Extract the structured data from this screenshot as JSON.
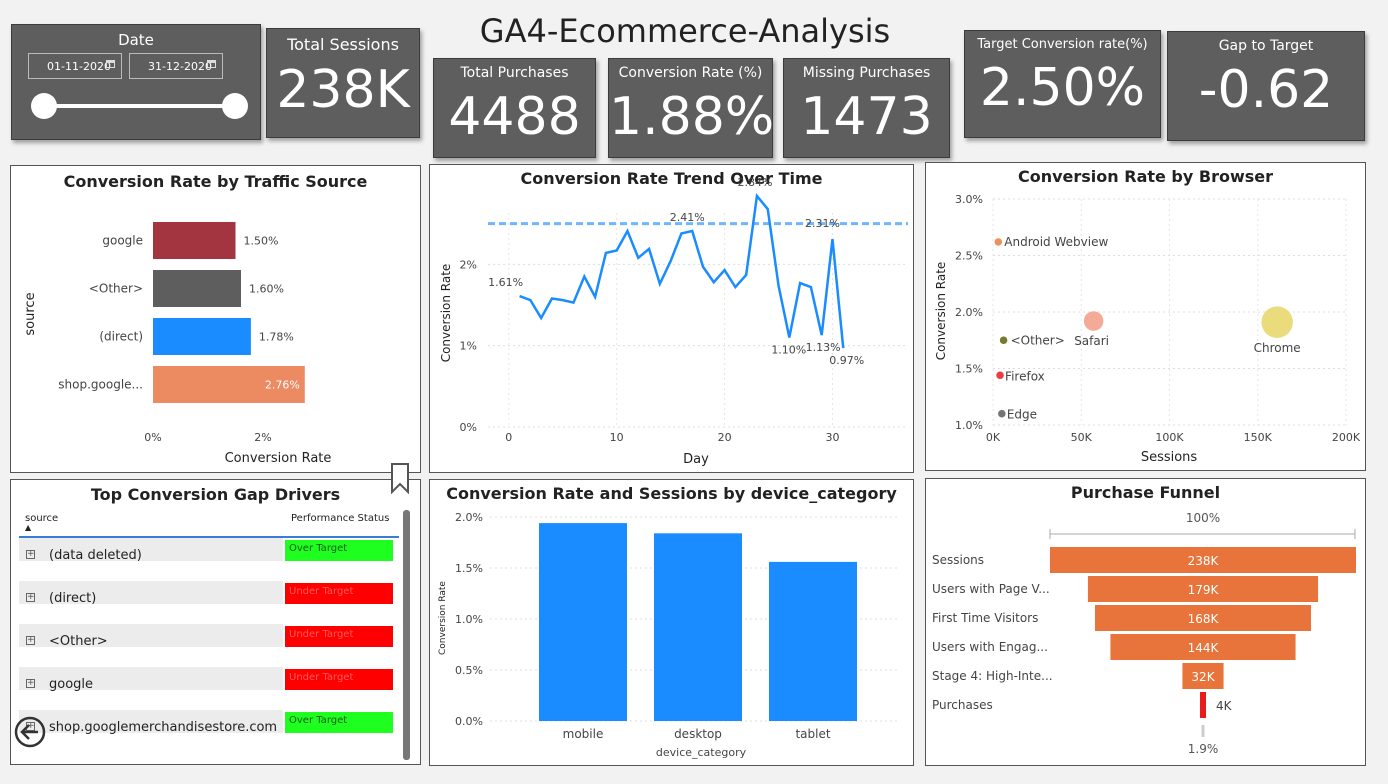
{
  "title": "GA4-Ecommerce-Analysis",
  "date_filter": {
    "label": "Date",
    "start": "01-11-2020",
    "end": "31-12-2020"
  },
  "kpis": {
    "total_sessions": {
      "label": "Total Sessions",
      "value": "238K"
    },
    "total_purchases": {
      "label": "Total Purchases",
      "value": "4488"
    },
    "conversion_rate": {
      "label": "Conversion Rate (%)",
      "value": "1.88%"
    },
    "missing_purchases": {
      "label": "Missing Purchases",
      "value": "1473"
    },
    "target_conversion": {
      "label": "Target Conversion rate(%)",
      "value": "2.50%"
    },
    "gap_to_target": {
      "label": "Gap to Target",
      "value": "-0.62"
    }
  },
  "chart_data": [
    {
      "type": "bar",
      "orientation": "horizontal",
      "title": "Conversion Rate by Traffic Source",
      "xlabel": "Conversion Rate",
      "ylabel": "source",
      "categories": [
        "google",
        "<Other>",
        "(direct)",
        "shop.google..."
      ],
      "values": [
        1.5,
        1.6,
        1.78,
        2.76
      ],
      "labels": [
        "1.50%",
        "1.60%",
        "1.78%",
        "2.76%"
      ],
      "colors": [
        "#a33541",
        "#5e5e5e",
        "#1a8cff",
        "#ec8b62"
      ],
      "xticks": [
        "0%",
        "2%"
      ],
      "xlim": [
        0,
        2.8
      ]
    },
    {
      "type": "line",
      "title": "Conversion Rate Trend Over Time",
      "xlabel": "Day",
      "ylabel": "Conversion Rate",
      "x": [
        1,
        2,
        3,
        4,
        5,
        6,
        7,
        8,
        9,
        10,
        11,
        12,
        13,
        14,
        15,
        16,
        17,
        18,
        19,
        20,
        21,
        22,
        23,
        24,
        25,
        26,
        27,
        28,
        29,
        30,
        31
      ],
      "y": [
        1.61,
        1.56,
        1.34,
        1.58,
        1.56,
        1.53,
        1.85,
        1.6,
        2.14,
        2.17,
        2.41,
        2.08,
        2.19,
        1.76,
        2.04,
        2.38,
        2.41,
        1.97,
        1.78,
        1.93,
        1.72,
        1.87,
        2.84,
        2.68,
        1.74,
        1.1,
        1.77,
        1.72,
        1.13,
        2.31,
        0.97
      ],
      "annotations": [
        {
          "x": 1,
          "y": 1.61,
          "label": "1.61%"
        },
        {
          "x": 17,
          "y": 2.41,
          "label": "2.41%"
        },
        {
          "x": 23,
          "y": 2.84,
          "label": "2.84%"
        },
        {
          "x": 26,
          "y": 1.1,
          "label": "1.10%"
        },
        {
          "x": 29,
          "y": 1.13,
          "label": "1.13%"
        },
        {
          "x": 30,
          "y": 2.31,
          "label": "2.31%"
        },
        {
          "x": 31,
          "y": 0.97,
          "label": "0.97%"
        }
      ],
      "target_line": 2.5,
      "xticks": [
        0,
        10,
        20,
        30
      ],
      "yticks": [
        "0%",
        "1%",
        "2%"
      ],
      "xlim": [
        -1,
        37
      ],
      "ylim": [
        0,
        3.0
      ]
    },
    {
      "type": "scatter",
      "title": "Conversion Rate by Browser",
      "xlabel": "Sessions",
      "ylabel": "Conversion Rate",
      "points": [
        {
          "name": "Android Webview",
          "x": 3000,
          "y": 2.62,
          "color": "#e8884a"
        },
        {
          "name": "<Other>",
          "x": 6000,
          "y": 1.75,
          "color": "#6b6b1f"
        },
        {
          "name": "Safari",
          "x": 57000,
          "y": 1.92,
          "color": "#f2a38c"
        },
        {
          "name": "Chrome",
          "x": 161000,
          "y": 1.91,
          "color": "#e8d870"
        },
        {
          "name": "Firefox",
          "x": 4000,
          "y": 1.44,
          "color": "#e8282b"
        },
        {
          "name": "Edge",
          "x": 5000,
          "y": 1.1,
          "color": "#666666"
        }
      ],
      "xticks": [
        "0K",
        "50K",
        "100K",
        "150K",
        "200K"
      ],
      "yticks": [
        "1.0%",
        "1.5%",
        "2.0%",
        "2.5%",
        "3.0%"
      ],
      "xlim": [
        0,
        200000
      ],
      "ylim": [
        1.0,
        3.0
      ]
    },
    {
      "type": "bar",
      "title": "Conversion Rate and Sessions by device_category",
      "xlabel": "device_category",
      "ylabel": "Conversion Rate",
      "categories": [
        "mobile",
        "desktop",
        "tablet"
      ],
      "values": [
        1.94,
        1.84,
        1.56
      ],
      "yticks": [
        "0.0%",
        "0.5%",
        "1.0%",
        "1.5%",
        "2.0%"
      ],
      "ylim": [
        0,
        2.0
      ],
      "color": "#1a8cff"
    },
    {
      "type": "funnel",
      "title": "Purchase Funnel",
      "top_label": "100%",
      "bottom_label": "1.9%",
      "categories": [
        "Sessions",
        "Users with Page V...",
        "First Time Visitors",
        "Users with Engag...",
        "Stage 4: High-Inte...",
        "Purchases"
      ],
      "values": [
        238,
        179,
        168,
        144,
        32,
        4.5
      ],
      "labels": [
        "238K",
        "179K",
        "168K",
        "144K",
        "32K",
        "4K"
      ],
      "colors": [
        "#e8743b",
        "#e8743b",
        "#e8743b",
        "#e8743b",
        "#e8743b",
        "#e81c1c"
      ]
    }
  ],
  "gap_table": {
    "title": "Top Conversion Gap Drivers",
    "columns": [
      "source",
      "Performance Status"
    ],
    "rows": [
      {
        "source": "(data deleted)",
        "status": "Over Target",
        "color": "#1fff1f"
      },
      {
        "source": "(direct)",
        "status": "Under Target",
        "color": "#ff0000"
      },
      {
        "source": "<Other>",
        "status": "Under Target",
        "color": "#ff0000"
      },
      {
        "source": "google",
        "status": "Under Target",
        "color": "#ff0000"
      },
      {
        "source": "shop.googlemerchandisestore.com",
        "status": "Over Target",
        "color": "#1fff1f"
      }
    ]
  }
}
